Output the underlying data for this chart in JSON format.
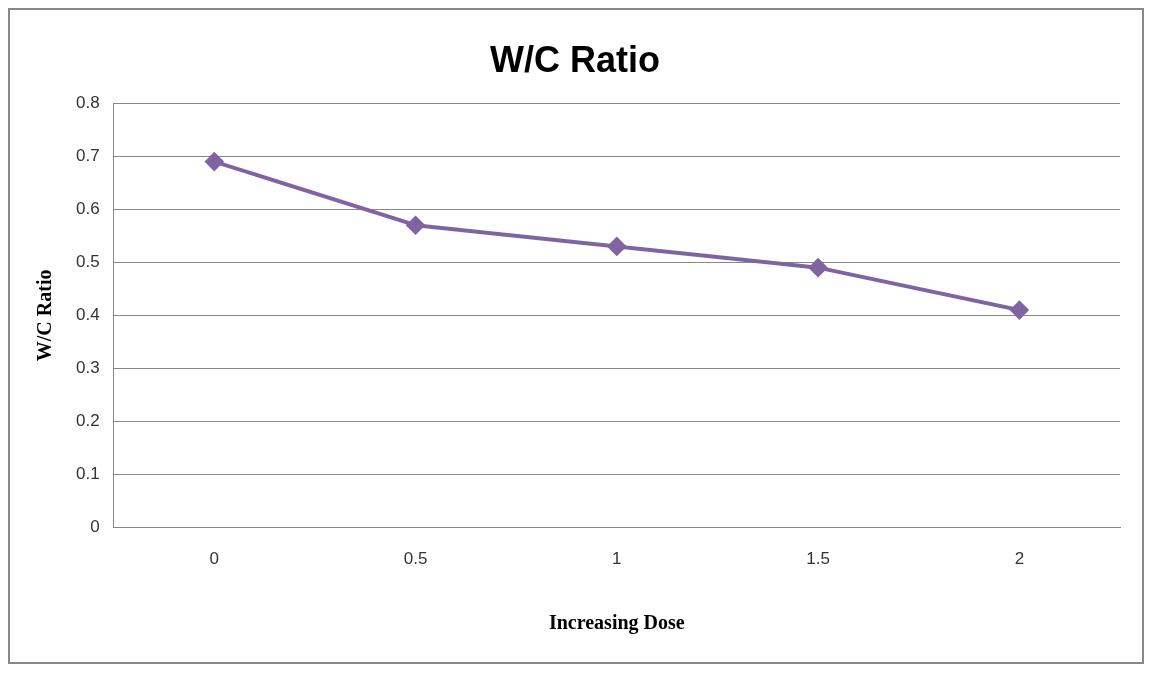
{
  "chart_data": {
    "type": "line",
    "title": "W/C Ratio",
    "xlabel": "Increasing Dose",
    "ylabel": "W/C Ratio",
    "categories": [
      "0",
      "0.5",
      "1",
      "1.5",
      "2"
    ],
    "series": [
      {
        "color": "#8064a2",
        "values": [
          0.69,
          0.57,
          0.53,
          0.49,
          0.41
        ]
      }
    ],
    "ylim": [
      0,
      0.8
    ],
    "yticks": [
      0,
      0.1,
      0.2,
      0.3,
      0.4,
      0.5,
      0.6,
      0.7,
      0.8
    ],
    "grid": "y",
    "legend": false,
    "marker": "diamond",
    "line_style": "solid"
  }
}
